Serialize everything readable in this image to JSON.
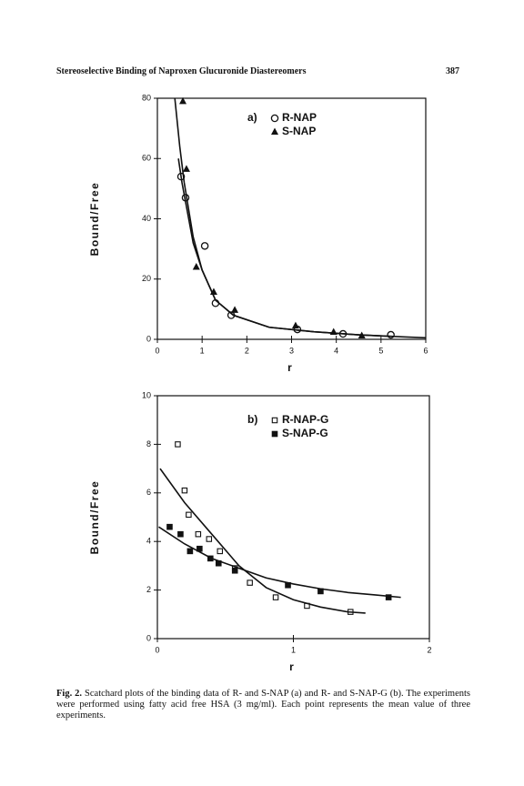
{
  "header": {
    "title": "Stereoselective Binding of Naproxen Glucuronide Diastereomers",
    "page": "387"
  },
  "chart_data": [
    {
      "type": "scatter",
      "panel_label": "a)",
      "x_label": "r",
      "y_label": "Bound/Free",
      "xlim": [
        0,
        6
      ],
      "xticks": [
        0,
        1,
        2,
        3,
        4,
        5,
        6
      ],
      "ylim": [
        0,
        80
      ],
      "yticks": [
        0,
        20,
        40,
        60,
        80
      ],
      "series": [
        {
          "name": "R-NAP",
          "marker": "circle-open",
          "color": "#111",
          "x": [
            0.53,
            0.63,
            1.06,
            1.3,
            1.65,
            3.13,
            4.15,
            5.22
          ],
          "values": [
            54,
            47,
            31,
            12,
            8,
            3.3,
            1.8,
            1.5
          ]
        },
        {
          "name": "S-NAP",
          "marker": "triangle",
          "color": "#111",
          "x": [
            0.57,
            0.65,
            0.87,
            1.26,
            1.73,
            3.09,
            3.94,
            4.57
          ],
          "values": [
            79,
            56.5,
            24,
            15.7,
            9.7,
            4.5,
            2.4,
            1.2
          ]
        },
        {
          "marker": "line",
          "color": "#111",
          "x": [
            0.39,
            0.5,
            0.6,
            0.8,
            1.0,
            1.3,
            1.7,
            2.5,
            3.5,
            4.5,
            5.5,
            6
          ],
          "values": [
            80,
            64,
            52,
            34,
            23,
            13,
            8,
            4,
            2.5,
            1.5,
            0.8,
            0.5
          ]
        },
        {
          "marker": "line",
          "color": "#111",
          "x": [
            0.47,
            0.55,
            0.65,
            0.8,
            1.0,
            1.3,
            1.7,
            2.5,
            3.5,
            4.5,
            5.2
          ],
          "values": [
            60,
            52,
            44,
            32,
            23,
            13,
            8,
            4,
            2.5,
            1.5,
            1
          ]
        }
      ]
    },
    {
      "type": "scatter",
      "panel_label": "b)",
      "x_label": "r",
      "y_label": "Bound/Free",
      "xlim": [
        0,
        2
      ],
      "xticks": [
        0,
        1,
        2
      ],
      "ylim": [
        0,
        10
      ],
      "yticks": [
        0,
        2,
        4,
        6,
        8,
        10
      ],
      "series": [
        {
          "name": "R-NAP-G",
          "marker": "square-open",
          "color": "#111",
          "x": [
            0.15,
            0.2,
            0.23,
            0.3,
            0.38,
            0.46,
            0.57,
            0.68,
            0.87,
            1.1,
            1.42
          ],
          "values": [
            8.0,
            6.1,
            5.1,
            4.3,
            4.1,
            3.6,
            2.9,
            2.3,
            1.7,
            1.35,
            1.1
          ]
        },
        {
          "name": "S-NAP-G",
          "marker": "square",
          "color": "#111",
          "x": [
            0.09,
            0.17,
            0.24,
            0.31,
            0.39,
            0.45,
            0.57,
            0.96,
            1.2,
            1.7
          ],
          "values": [
            4.6,
            4.3,
            3.6,
            3.7,
            3.3,
            3.1,
            2.8,
            2.2,
            1.95,
            1.7
          ]
        },
        {
          "marker": "line",
          "color": "#111",
          "x": [
            0.02,
            0.2,
            0.4,
            0.6,
            0.8,
            1.0,
            1.2,
            1.4,
            1.53
          ],
          "values": [
            7.0,
            5.6,
            4.3,
            3.0,
            2.1,
            1.6,
            1.3,
            1.1,
            1.05
          ]
        },
        {
          "marker": "line",
          "color": "#111",
          "x": [
            0.01,
            0.2,
            0.4,
            0.6,
            0.8,
            1.0,
            1.2,
            1.4,
            1.6,
            1.79
          ],
          "values": [
            4.6,
            3.9,
            3.3,
            2.9,
            2.5,
            2.25,
            2.05,
            1.9,
            1.8,
            1.7
          ]
        }
      ]
    }
  ],
  "caption": {
    "label": "Fig. 2.",
    "text": "Scatchard plots of the binding data of R- and S-NAP (a) and R- and S-NAP-G (b). The experiments were performed using fatty acid free HSA (3 mg/ml). Each point represents the mean value of three experiments."
  }
}
